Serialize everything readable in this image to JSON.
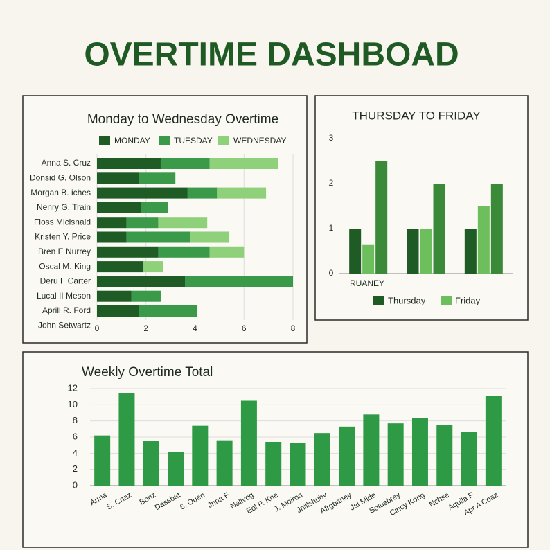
{
  "title": "OVERTIME DASHBOAD",
  "chart_data": [
    {
      "type": "stacked-barh",
      "title": "Monday to Wednesday Overtime",
      "categories": [
        "Anna S. Cruz",
        "Donsid G. Olson",
        "Morgan B. iches",
        "Nenry G. Train",
        "Floss Micisnald",
        "Kristen Y. Price",
        "Bren E Nurrey",
        "Oscal M. King",
        "Deru F Carter",
        "Lucal II Meson",
        "Aprill R. Ford",
        "John Setwartz"
      ],
      "series": [
        {
          "name": "MONDAY",
          "color": "#1f5c25",
          "values": [
            2.6,
            1.7,
            3.7,
            1.8,
            1.2,
            1.2,
            2.5,
            1.9,
            3.6,
            1.4,
            1.7,
            null
          ]
        },
        {
          "name": "TUESDAY",
          "color": "#3a9a4a",
          "values": [
            2.0,
            1.5,
            1.2,
            1.1,
            1.3,
            2.6,
            2.1,
            null,
            4.4,
            1.2,
            2.4,
            null
          ]
        },
        {
          "name": "WEDNESDAY",
          "color": "#8fd07a",
          "values": [
            2.8,
            null,
            2.0,
            null,
            2.0,
            1.6,
            1.4,
            0.8,
            null,
            null,
            null,
            null
          ]
        }
      ],
      "xlim": [
        0,
        8
      ],
      "xticks": [
        0,
        2,
        4,
        6,
        8
      ],
      "grid": true
    },
    {
      "type": "grouped-bar",
      "title": "THURSDAY TO FRIDAY",
      "categories": [
        "RUANEY",
        null,
        null
      ],
      "series": [
        {
          "name": "Thursday",
          "color": "#1f5c25",
          "values": [
            1,
            1,
            1
          ]
        },
        {
          "name": "Friday",
          "color": "#6cbf5c",
          "values": [
            0.65,
            1,
            1.5
          ]
        },
        {
          "color": "#3a8a3a",
          "values": [
            2.5,
            2,
            2
          ]
        }
      ],
      "ylim": [
        0,
        3
      ],
      "yticks": [
        0,
        1,
        2,
        3
      ],
      "grid": false
    },
    {
      "type": "bar",
      "title": "Weekly Overtime Total",
      "categories": [
        "Arma",
        "S. Cnaz",
        "Bonz",
        "Dassbat",
        "6. Ouen",
        "Jnna F",
        "Nalivog",
        "Eol P. Kne",
        "J. Moiron",
        "Jnillshuby",
        "Afrgbaney",
        "Jal Mide",
        "Sotusbrey",
        "Cincy Kong",
        "Nchse",
        "Aquila F",
        "Apr A Coaz"
      ],
      "values": [
        6.2,
        11.4,
        5.5,
        4.2,
        7.4,
        5.6,
        10.5,
        5.4,
        5.3,
        6.5,
        7.3,
        8.8,
        7.7,
        8.4,
        7.5,
        6.6,
        11.1
      ],
      "color": "#2e9a45",
      "ylim": [
        0,
        12
      ],
      "yticks": [
        0,
        2,
        4,
        6,
        8,
        10,
        12
      ],
      "grid": true
    }
  ]
}
